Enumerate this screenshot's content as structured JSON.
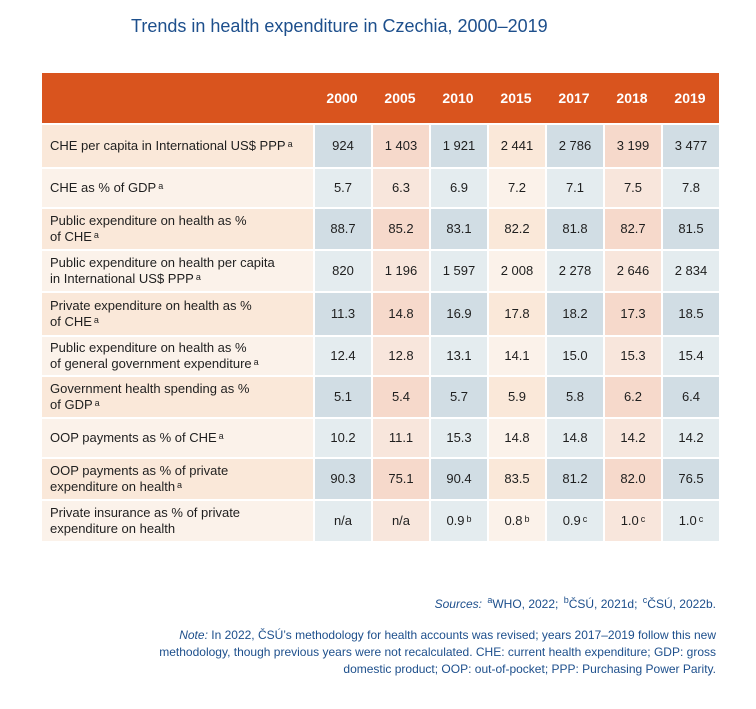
{
  "title": "Trends in health expenditure in Czechia, 2000–2019",
  "years": [
    "2000",
    "2005",
    "2010",
    "2015",
    "2017",
    "2018",
    "2019"
  ],
  "rows": [
    {
      "label_lines": [
        "CHE per capita in International US$ PPP"
      ],
      "sup": "a",
      "values": [
        {
          "v": "924"
        },
        {
          "v": "1 403"
        },
        {
          "v": "1 921"
        },
        {
          "v": "2 441"
        },
        {
          "v": "2 786"
        },
        {
          "v": "3 199"
        },
        {
          "v": "3 477"
        }
      ]
    },
    {
      "label_lines": [
        "CHE as % of GDP"
      ],
      "sup": "a",
      "values": [
        {
          "v": "5.7"
        },
        {
          "v": "6.3"
        },
        {
          "v": "6.9"
        },
        {
          "v": "7.2"
        },
        {
          "v": "7.1"
        },
        {
          "v": "7.5"
        },
        {
          "v": "7.8"
        }
      ]
    },
    {
      "label_lines": [
        "Public expenditure on health as %",
        "of CHE"
      ],
      "sup": "a",
      "values": [
        {
          "v": "88.7"
        },
        {
          "v": "85.2"
        },
        {
          "v": "83.1"
        },
        {
          "v": "82.2"
        },
        {
          "v": "81.8"
        },
        {
          "v": "82.7"
        },
        {
          "v": "81.5"
        }
      ]
    },
    {
      "label_lines": [
        "Public expenditure on health per capita",
        "in International US$ PPP"
      ],
      "sup": "a",
      "values": [
        {
          "v": "820"
        },
        {
          "v": "1 196"
        },
        {
          "v": "1 597"
        },
        {
          "v": "2 008"
        },
        {
          "v": "2 278"
        },
        {
          "v": "2 646"
        },
        {
          "v": "2 834"
        }
      ]
    },
    {
      "label_lines": [
        "Private expenditure on health as %",
        "of CHE"
      ],
      "sup": "a",
      "values": [
        {
          "v": "11.3"
        },
        {
          "v": "14.8"
        },
        {
          "v": "16.9"
        },
        {
          "v": "17.8"
        },
        {
          "v": "18.2"
        },
        {
          "v": "17.3"
        },
        {
          "v": "18.5"
        }
      ]
    },
    {
      "label_lines": [
        "Public expenditure on health as %",
        "of general government expenditure"
      ],
      "sup": "a",
      "values": [
        {
          "v": "12.4"
        },
        {
          "v": "12.8"
        },
        {
          "v": "13.1"
        },
        {
          "v": "14.1"
        },
        {
          "v": "15.0"
        },
        {
          "v": "15.3"
        },
        {
          "v": "15.4"
        }
      ]
    },
    {
      "label_lines": [
        "Government health spending as %",
        "of GDP"
      ],
      "sup": "a",
      "values": [
        {
          "v": "5.1"
        },
        {
          "v": "5.4"
        },
        {
          "v": "5.7"
        },
        {
          "v": "5.9"
        },
        {
          "v": "5.8"
        },
        {
          "v": "6.2"
        },
        {
          "v": "6.4"
        }
      ]
    },
    {
      "label_lines": [
        "OOP payments as % of CHE"
      ],
      "sup": "a",
      "values": [
        {
          "v": "10.2"
        },
        {
          "v": "11.1"
        },
        {
          "v": "15.3"
        },
        {
          "v": "14.8"
        },
        {
          "v": "14.8"
        },
        {
          "v": "14.2"
        },
        {
          "v": "14.2"
        }
      ]
    },
    {
      "label_lines": [
        "OOP payments as % of private",
        "expenditure on health"
      ],
      "sup": "a",
      "values": [
        {
          "v": "90.3"
        },
        {
          "v": "75.1"
        },
        {
          "v": "90.4"
        },
        {
          "v": "83.5"
        },
        {
          "v": "81.2"
        },
        {
          "v": "82.0"
        },
        {
          "v": "76.5"
        }
      ]
    },
    {
      "label_lines": [
        "Private insurance as % of private",
        "expenditure on health"
      ],
      "sup": "",
      "values": [
        {
          "v": "n/a"
        },
        {
          "v": "n/a"
        },
        {
          "v": "0.9",
          "sup": "b"
        },
        {
          "v": "0.8",
          "sup": "b"
        },
        {
          "v": "0.9",
          "sup": "c"
        },
        {
          "v": "1.0",
          "sup": "c"
        },
        {
          "v": "1.0",
          "sup": "c"
        }
      ]
    }
  ],
  "sources": {
    "label": "Sources:",
    "a_sup": "a",
    "a_text": "WHO, 2022;",
    "b_sup": "b",
    "b_text": "ČSÚ, 2021d;",
    "c_sup": "c",
    "c_text": "ČSÚ, 2022b."
  },
  "note": {
    "label": "Note:",
    "text": "In 2022, ČSÚ’s methodology for health accounts was revised; years 2017–2019 follow this new methodology, though previous years were not recalculated. CHE: current health expenditure; GDP: gross domestic product; OOP: out-of-pocket; PPP: Purchasing Power Parity."
  },
  "colors": {
    "header": "#d9541e",
    "title": "#1d4f8c",
    "band_peach": "#fae8d9",
    "band_light": "#fbf2ea",
    "cell_blue": "#d1dde4",
    "cell_pink": "#f6d9cb"
  }
}
